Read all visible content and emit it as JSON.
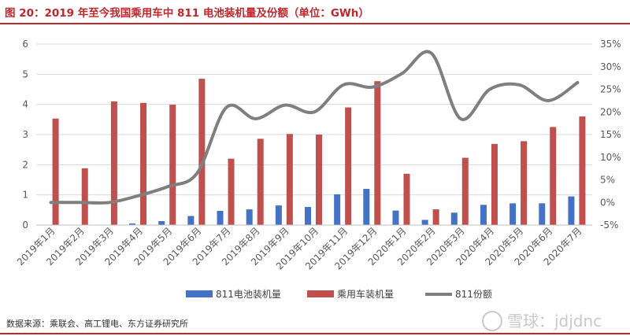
{
  "header": {
    "title": "图 20：2019 年至今我国乘用车中 811 电池装机量及份额（单位：GWh）"
  },
  "footer": {
    "source": "数据来源：乘联会、高工锂电、东方证券研究所",
    "watermark": "雪球：jdjdnc"
  },
  "colors": {
    "accent": "#c0272d",
    "bar_811": "#4472c4",
    "bar_total": "#c0504d",
    "line_share": "#7f7f7f"
  },
  "chart_data": {
    "type": "bar",
    "categories": [
      "2019年1月",
      "2019年2月",
      "2019年3月",
      "2019年4月",
      "2019年5月",
      "2019年6月",
      "2019年7月",
      "2019年8月",
      "2019年9月",
      "2019年10月",
      "2019年11月",
      "2019年12月",
      "2020年1月",
      "2020年2月",
      "2020年3月",
      "2020年4月",
      "2020年5月",
      "2020年6月",
      "2020年7月"
    ],
    "series": [
      {
        "name": "811电池装机量",
        "type": "bar",
        "axis": "left",
        "values": [
          0,
          0,
          0,
          0.05,
          0.13,
          0.3,
          0.47,
          0.52,
          0.65,
          0.6,
          1.02,
          1.2,
          0.48,
          0.17,
          0.41,
          0.67,
          0.72,
          0.72,
          0.95
        ]
      },
      {
        "name": "乘用车装机量",
        "type": "bar",
        "axis": "left",
        "values": [
          3.53,
          1.88,
          4.1,
          4.05,
          3.99,
          4.85,
          2.2,
          2.86,
          3.02,
          3.0,
          3.9,
          4.77,
          1.7,
          0.52,
          2.23,
          2.69,
          2.78,
          3.25,
          3.6
        ]
      },
      {
        "name": "811份额",
        "type": "line",
        "axis": "right",
        "values": [
          0.0,
          0.0,
          0.0,
          1.5,
          3.5,
          6.5,
          21.0,
          18.5,
          21.5,
          20.0,
          26.0,
          25.5,
          28.5,
          33.0,
          18.5,
          25.0,
          26.0,
          22.5,
          26.5
        ]
      }
    ],
    "y_left": {
      "min": 0,
      "max": 6,
      "ticks": [
        "0",
        "1",
        "2",
        "3",
        "4",
        "5",
        "6"
      ]
    },
    "y_right": {
      "min": -5,
      "max": 35,
      "ticks": [
        "-5%",
        "0%",
        "5%",
        "10%",
        "15%",
        "20%",
        "25%",
        "30%",
        "35%"
      ]
    },
    "grid": true,
    "legend": {
      "position": "bottom",
      "items": [
        "811电池装机量",
        "乘用车装机量",
        "811份额"
      ]
    }
  }
}
